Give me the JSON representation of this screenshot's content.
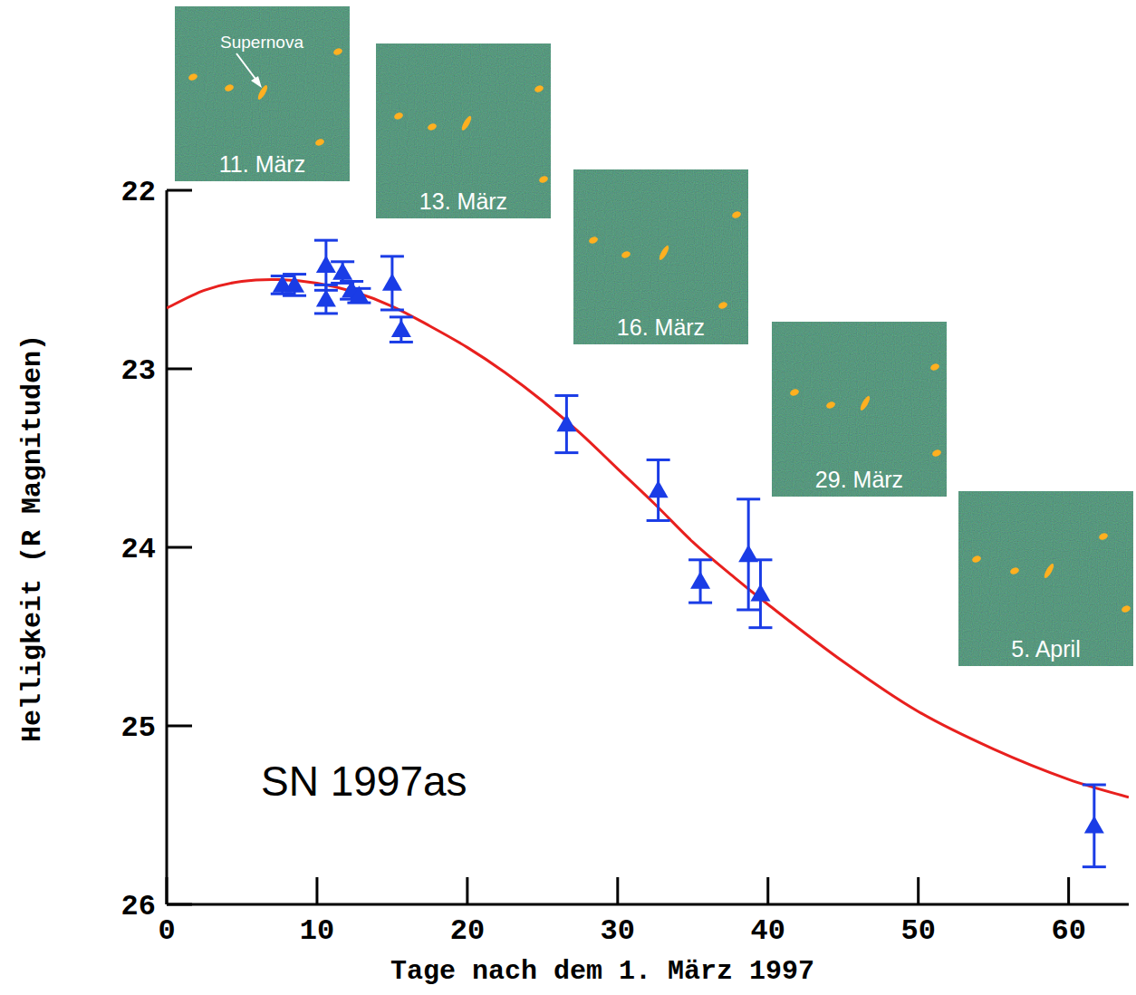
{
  "chart_data": {
    "type": "scatter",
    "xlabel": "Tage nach dem 1. März 1997",
    "ylabel": "Helligkeit (R Magnituden)",
    "xlim": [
      0,
      64
    ],
    "ylim": [
      26,
      22
    ],
    "xticks": [
      0,
      10,
      20,
      30,
      40,
      50,
      60
    ],
    "yticks": [
      22,
      23,
      24,
      25,
      26
    ],
    "series": [
      {
        "type": "line",
        "color": "#e8201e",
        "line_style": "solid",
        "x": [
          0,
          2.5,
          5,
          7.5,
          10,
          12.5,
          15,
          17.5,
          20,
          22.5,
          25,
          27.5,
          30,
          32.5,
          35,
          37.5,
          40,
          45,
          50,
          55,
          60,
          64
        ],
        "values": [
          22.66,
          22.56,
          22.51,
          22.5,
          22.52,
          22.57,
          22.65,
          22.76,
          22.88,
          23.02,
          23.18,
          23.36,
          23.56,
          23.76,
          23.97,
          24.15,
          24.32,
          24.64,
          24.92,
          25.13,
          25.3,
          25.4
        ]
      },
      {
        "type": "scatter",
        "color": "#1a3ce6",
        "marker": "triangle",
        "x": [
          7.7,
          8.5,
          10.6,
          10.6,
          11.7,
          12.3,
          12.8,
          15.0,
          15.6,
          26.6,
          32.7,
          35.5,
          38.7,
          39.5,
          61.7
        ],
        "values": [
          22.53,
          22.53,
          22.42,
          22.61,
          22.46,
          22.56,
          22.59,
          22.52,
          22.78,
          23.31,
          23.68,
          24.19,
          24.04,
          24.26,
          25.56
        ],
        "errors": [
          0.05,
          0.06,
          0.14,
          0.08,
          0.06,
          0.05,
          0.04,
          0.15,
          0.07,
          0.16,
          0.17,
          0.12,
          0.31,
          0.19,
          0.23
        ]
      }
    ],
    "annotations": [
      "SN 1997as"
    ],
    "insets": [
      "11. März",
      "13. März",
      "16. März",
      "29. März",
      "5. April"
    ],
    "pointer_label": "Supernova"
  }
}
